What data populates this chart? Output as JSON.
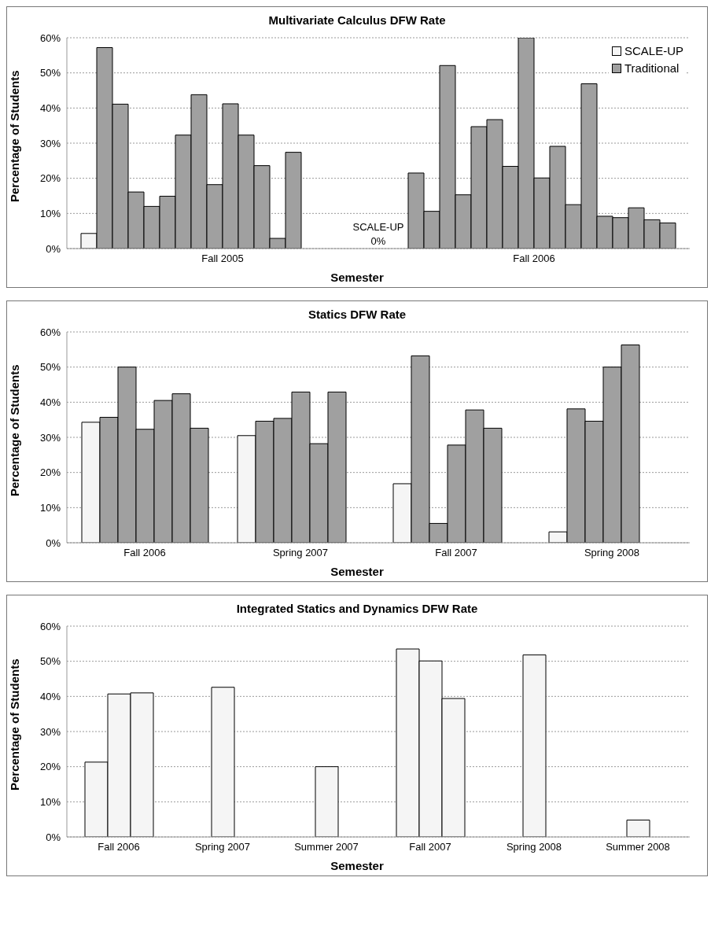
{
  "chart_data": [
    {
      "type": "bar",
      "title": "Multivariate Calculus DFW Rate",
      "xlabel": "Semester",
      "ylabel": "Percentage of Students",
      "categories": [
        "Fall 2005",
        "Fall 2006"
      ],
      "series": [
        {
          "name": "SCALE-UP",
          "color": "#f5f5f5",
          "values": [
            4.3,
            0
          ]
        },
        {
          "name": "Traditional",
          "color": "#a0a0a0",
          "values": [
            57.2,
            21.5
          ]
        },
        {
          "color": "#a0a0a0",
          "values": [
            41.1,
            10.6
          ]
        },
        {
          "color": "#a0a0a0",
          "values": [
            16.1,
            52.1
          ]
        },
        {
          "color": "#a0a0a0",
          "values": [
            12.0,
            15.3
          ]
        },
        {
          "color": "#a0a0a0",
          "values": [
            14.9,
            34.7
          ]
        },
        {
          "color": "#a0a0a0",
          "values": [
            32.3,
            36.7
          ]
        },
        {
          "color": "#a0a0a0",
          "values": [
            43.8,
            23.4
          ]
        },
        {
          "color": "#a0a0a0",
          "values": [
            18.2,
            60
          ]
        },
        {
          "color": "#a0a0a0",
          "values": [
            41.2,
            20.1
          ]
        },
        {
          "color": "#a0a0a0",
          "values": [
            32.3,
            29.1
          ]
        },
        {
          "color": "#a0a0a0",
          "values": [
            23.6,
            12.5
          ]
        },
        {
          "color": "#a0a0a0",
          "values": [
            2.9,
            46.9
          ]
        },
        {
          "color": "#a0a0a0",
          "values": [
            27.4,
            9.2
          ]
        },
        {
          "color": "#a0a0a0",
          "values": [
            null,
            8.8
          ]
        },
        {
          "color": "#a0a0a0",
          "values": [
            null,
            11.6
          ]
        },
        {
          "color": "#a0a0a0",
          "values": [
            null,
            8.2
          ]
        },
        {
          "color": "#a0a0a0",
          "values": [
            null,
            7.3
          ]
        }
      ],
      "ylim": [
        0,
        60
      ],
      "yticks": [
        {
          "value": 0,
          "label": "0%"
        },
        {
          "value": 10,
          "label": "10%"
        },
        {
          "value": 20,
          "label": "20%"
        },
        {
          "value": 30,
          "label": "30%"
        },
        {
          "value": 40,
          "label": "40%"
        },
        {
          "value": 50,
          "label": "50%"
        },
        {
          "value": 60,
          "label": "60%"
        }
      ],
      "grid": "y",
      "legend": "top right",
      "annotations": [
        "SCALE-UP 0%"
      ]
    },
    {
      "type": "bar",
      "title": "Statics DFW Rate",
      "xlabel": "Semester",
      "ylabel": "Percentage of Students",
      "categories": [
        "Fall 2006",
        "Spring 2007",
        "Fall 2007",
        "Spring 2008"
      ],
      "series": [
        {
          "color": "#f5f5f5",
          "values": [
            34.3,
            30.5,
            16.8,
            3.1
          ]
        },
        {
          "color": "#a0a0a0",
          "values": [
            35.7,
            34.6,
            53.2,
            38.1
          ]
        },
        {
          "color": "#a0a0a0",
          "values": [
            50.0,
            35.4,
            5.5,
            34.6
          ]
        },
        {
          "color": "#a0a0a0",
          "values": [
            32.3,
            42.9,
            27.8,
            50.0
          ]
        },
        {
          "color": "#a0a0a0",
          "values": [
            40.5,
            28.2,
            37.8,
            56.3
          ]
        },
        {
          "color": "#a0a0a0",
          "values": [
            42.4,
            42.9,
            32.6,
            null
          ]
        },
        {
          "color": "#a0a0a0",
          "values": [
            32.6,
            null,
            null,
            null
          ]
        }
      ],
      "ylim": [
        0,
        60
      ],
      "yticks": [
        {
          "value": 0,
          "label": "0%"
        },
        {
          "value": 10,
          "label": "10%"
        },
        {
          "value": 20,
          "label": "20%"
        },
        {
          "value": 30,
          "label": "30%"
        },
        {
          "value": 40,
          "label": "40%"
        },
        {
          "value": 50,
          "label": "50%"
        },
        {
          "value": 60,
          "label": "60%"
        }
      ],
      "grid": "y"
    },
    {
      "type": "bar",
      "title": "Integrated Statics and Dynamics DFW Rate",
      "xlabel": "Semester",
      "ylabel": "Percentage of Students",
      "categories": [
        "Fall 2006",
        "Spring 2007",
        "Summer 2007",
        "Fall 2007",
        "Spring 2008",
        "Summer 2008"
      ],
      "series": [
        {
          "color": "#f5f5f5",
          "values": [
            21.3,
            null,
            null,
            53.5,
            null,
            null
          ]
        },
        {
          "color": "#f5f5f5",
          "values": [
            40.7,
            42.6,
            20.0,
            50.1,
            51.8,
            4.8
          ]
        },
        {
          "color": "#f5f5f5",
          "values": [
            41.0,
            null,
            null,
            39.4,
            null,
            null
          ]
        }
      ],
      "ylim": [
        0,
        60
      ],
      "yticks": [
        {
          "value": 0,
          "label": "0%"
        },
        {
          "value": 10,
          "label": "10%"
        },
        {
          "value": 20,
          "label": "20%"
        },
        {
          "value": 30,
          "label": "30%"
        },
        {
          "value": 40,
          "label": "40%"
        },
        {
          "value": 50,
          "label": "50%"
        },
        {
          "value": 60,
          "label": "60%"
        }
      ],
      "grid": "y"
    }
  ]
}
